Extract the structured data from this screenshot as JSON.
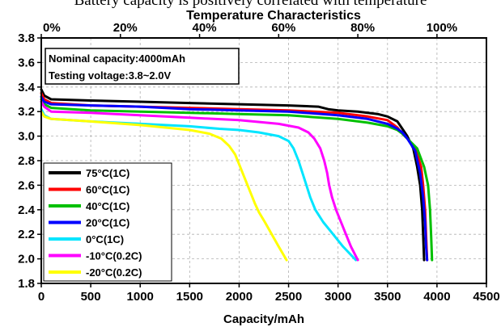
{
  "page_caption": "Battery capacity is positively correlated with temperature",
  "chart_data": {
    "type": "line",
    "title": "Temperature Characteristics",
    "xlabel": "Capacity/mAh",
    "ylabel": "",
    "xlim": [
      0,
      4500
    ],
    "ylim": [
      1.8,
      3.8
    ],
    "x_ticks": [
      "0",
      "500",
      "1000",
      "1500",
      "2000",
      "2500",
      "3000",
      "3500",
      "4000",
      "4500"
    ],
    "y_ticks": [
      "1.8",
      "2.0",
      "2.2",
      "2.4",
      "2.6",
      "2.8",
      "3.0",
      "3.2",
      "3.4",
      "3.6",
      "3.8"
    ],
    "top_ticks": [
      "0%",
      "20%",
      "40%",
      "60%",
      "80%",
      "100%"
    ],
    "top_axis_max_capacity": 4000,
    "grid": true,
    "legend_position": "bottom-left",
    "annotations": [
      "Nominal capacity:4000mAh",
      "Testing voltage:3.8~2.0V"
    ],
    "series": [
      {
        "name": "75°C(1C)",
        "color": "#000000",
        "points": [
          [
            0,
            3.38
          ],
          [
            30,
            3.33
          ],
          [
            100,
            3.3
          ],
          [
            500,
            3.29
          ],
          [
            1000,
            3.28
          ],
          [
            1500,
            3.27
          ],
          [
            2000,
            3.26
          ],
          [
            2500,
            3.25
          ],
          [
            2800,
            3.24
          ],
          [
            2900,
            3.22
          ],
          [
            3000,
            3.21
          ],
          [
            3200,
            3.2
          ],
          [
            3400,
            3.18
          ],
          [
            3500,
            3.16
          ],
          [
            3600,
            3.12
          ],
          [
            3650,
            3.06
          ],
          [
            3700,
            3.0
          ],
          [
            3760,
            2.9
          ],
          [
            3800,
            2.75
          ],
          [
            3830,
            2.6
          ],
          [
            3850,
            2.4
          ],
          [
            3860,
            2.2
          ],
          [
            3870,
            1.99
          ]
        ]
      },
      {
        "name": "60°C(1C)",
        "color": "#ff0000",
        "points": [
          [
            0,
            3.35
          ],
          [
            30,
            3.3
          ],
          [
            100,
            3.27
          ],
          [
            500,
            3.25
          ],
          [
            1000,
            3.24
          ],
          [
            1500,
            3.23
          ],
          [
            2000,
            3.22
          ],
          [
            2500,
            3.21
          ],
          [
            3000,
            3.19
          ],
          [
            3300,
            3.16
          ],
          [
            3500,
            3.13
          ],
          [
            3600,
            3.07
          ],
          [
            3650,
            3.02
          ],
          [
            3700,
            2.98
          ],
          [
            3780,
            2.9
          ],
          [
            3840,
            2.75
          ],
          [
            3860,
            2.6
          ],
          [
            3880,
            2.4
          ],
          [
            3890,
            2.2
          ],
          [
            3900,
            1.99
          ]
        ]
      },
      {
        "name": "40°C(1C)",
        "color": "#00c000",
        "points": [
          [
            0,
            3.3
          ],
          [
            30,
            3.26
          ],
          [
            100,
            3.23
          ],
          [
            500,
            3.21
          ],
          [
            1000,
            3.2
          ],
          [
            1500,
            3.19
          ],
          [
            2000,
            3.18
          ],
          [
            2500,
            3.17
          ],
          [
            3000,
            3.14
          ],
          [
            3300,
            3.11
          ],
          [
            3500,
            3.08
          ],
          [
            3600,
            3.05
          ],
          [
            3650,
            3.02
          ],
          [
            3700,
            2.98
          ],
          [
            3800,
            2.9
          ],
          [
            3870,
            2.75
          ],
          [
            3910,
            2.6
          ],
          [
            3930,
            2.4
          ],
          [
            3940,
            2.2
          ],
          [
            3950,
            1.99
          ]
        ]
      },
      {
        "name": "20°C(1C)",
        "color": "#0000ff",
        "points": [
          [
            0,
            3.32
          ],
          [
            30,
            3.28
          ],
          [
            100,
            3.26
          ],
          [
            500,
            3.25
          ],
          [
            1000,
            3.24
          ],
          [
            1500,
            3.22
          ],
          [
            2000,
            3.21
          ],
          [
            2500,
            3.2
          ],
          [
            3000,
            3.17
          ],
          [
            3300,
            3.14
          ],
          [
            3500,
            3.1
          ],
          [
            3600,
            3.06
          ],
          [
            3650,
            3.03
          ],
          [
            3700,
            2.98
          ],
          [
            3780,
            2.88
          ],
          [
            3830,
            2.7
          ],
          [
            3860,
            2.5
          ],
          [
            3880,
            2.3
          ],
          [
            3890,
            2.1
          ],
          [
            3900,
            1.99
          ]
        ]
      },
      {
        "name": "0°C(1C)",
        "color": "#00e5ff",
        "points": [
          [
            0,
            3.22
          ],
          [
            30,
            3.17
          ],
          [
            100,
            3.14
          ],
          [
            500,
            3.12
          ],
          [
            1000,
            3.1
          ],
          [
            1500,
            3.08
          ],
          [
            1800,
            3.06
          ],
          [
            2000,
            3.05
          ],
          [
            2200,
            3.03
          ],
          [
            2400,
            3.0
          ],
          [
            2500,
            2.96
          ],
          [
            2550,
            2.9
          ],
          [
            2600,
            2.8
          ],
          [
            2640,
            2.7
          ],
          [
            2680,
            2.6
          ],
          [
            2720,
            2.5
          ],
          [
            2770,
            2.4
          ],
          [
            2850,
            2.3
          ],
          [
            2950,
            2.2
          ],
          [
            3050,
            2.1
          ],
          [
            3180,
            1.99
          ]
        ]
      },
      {
        "name": "-10°C(0.2C)",
        "color": "#ff00ff",
        "points": [
          [
            0,
            3.28
          ],
          [
            30,
            3.24
          ],
          [
            100,
            3.2
          ],
          [
            500,
            3.19
          ],
          [
            1000,
            3.17
          ],
          [
            1500,
            3.15
          ],
          [
            2000,
            3.13
          ],
          [
            2400,
            3.1
          ],
          [
            2600,
            3.07
          ],
          [
            2700,
            3.03
          ],
          [
            2760,
            2.98
          ],
          [
            2820,
            2.9
          ],
          [
            2860,
            2.8
          ],
          [
            2890,
            2.7
          ],
          [
            2910,
            2.6
          ],
          [
            2940,
            2.5
          ],
          [
            2980,
            2.4
          ],
          [
            3030,
            2.3
          ],
          [
            3080,
            2.2
          ],
          [
            3130,
            2.1
          ],
          [
            3200,
            1.99
          ]
        ]
      },
      {
        "name": "-20°C(0.2C)",
        "color": "#ffff00",
        "points": [
          [
            0,
            3.2
          ],
          [
            30,
            3.16
          ],
          [
            100,
            3.14
          ],
          [
            500,
            3.12
          ],
          [
            1000,
            3.09
          ],
          [
            1500,
            3.05
          ],
          [
            1700,
            3.02
          ],
          [
            1820,
            2.98
          ],
          [
            1900,
            2.92
          ],
          [
            1960,
            2.85
          ],
          [
            2010,
            2.75
          ],
          [
            2060,
            2.65
          ],
          [
            2110,
            2.55
          ],
          [
            2160,
            2.45
          ],
          [
            2200,
            2.38
          ],
          [
            2260,
            2.3
          ],
          [
            2330,
            2.2
          ],
          [
            2400,
            2.1
          ],
          [
            2480,
            1.99
          ]
        ]
      }
    ]
  }
}
